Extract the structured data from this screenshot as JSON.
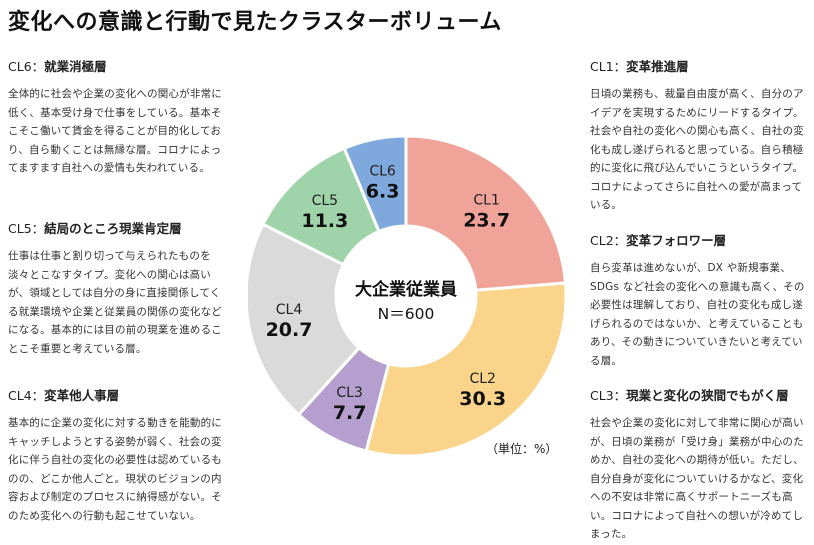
{
  "title": "変化への意識と行動で見たクラスターボリューム",
  "unit": "（単位：%）",
  "blocks": {
    "cl6": {
      "code": "CL6：",
      "name": "就業消極層",
      "body": "全体的に社会や企業の変化への関心が非常に低く、基本受け身で仕事をしている。基本そこそこ働いて賃金を得ることが目的化しており、自ら動くことは無縁な層。コロナによってますます自社への愛情も失われている。"
    },
    "cl5": {
      "code": "CL5：",
      "name": "結局のところ現業肯定層",
      "body": "仕事は仕事と割り切って与えられたものを淡々とこなすタイプ。変化への関心は高いが、領域としては自分の身に直接関係してくる就業環境や企業と従業員の関係の変化などになる。基本的には目の前の現業を進めることこそ重要と考えている層。"
    },
    "cl4": {
      "code": "CL4：",
      "name": "変革他人事層",
      "body": "基本的に企業の変化に対する動きを能動的にキャッチしようとする姿勢が弱く、社会の変化に伴う自社の変化の必要性は認めているものの、どこか他人ごと。現状のビジョンの内容および制定のプロセスに納得感がない。そのため変化への行動も起こせていない。"
    },
    "cl1": {
      "code": "CL1：",
      "name": "変革推進層",
      "body": "日頃の業務も、裁量自由度が高く、自分のアイデアを実現するためにリードするタイプ。社会や自社の変化への関心も高く、自社の変化も成し遂げられると思っている。自ら積極的に変化に飛び込んでいこうというタイプ。コロナによってさらに自社への愛が高まっている。"
    },
    "cl2": {
      "code": "CL2：",
      "name": "変革フォロワー層",
      "body": "自ら変革は進めないが、DX や新規事業、SDGs など社会の変化への意識も高く、その必要性は理解しており、自社の変化も成し遂げられるのではないか、と考えていることもあり、その動きについていきたいと考えている層。"
    },
    "cl3": {
      "code": "CL3：",
      "name": "現業と変化の狭間でもがく層",
      "body": "社会や企業の変化に対して非常に関心が高いが、日頃の業務が「受け身」業務が中心のためか、自社の変化への期待が低い。ただし、自分自身が変化についていけるかなど、変化への不安は非常に高くサポートニーズも高い。コロナによって自社への想いが冷めてしまった。"
    }
  },
  "chart_data": {
    "type": "pie",
    "center_label": "大企業従業員",
    "center_sub": "N＝600",
    "slices": [
      {
        "label": "CL1",
        "value": 23.7,
        "color": "#f0a399"
      },
      {
        "label": "CL2",
        "value": 30.3,
        "color": "#fad48a"
      },
      {
        "label": "CL3",
        "value": 7.7,
        "color": "#b49fcf"
      },
      {
        "label": "CL4",
        "value": 20.7,
        "color": "#dadada"
      },
      {
        "label": "CL5",
        "value": 11.3,
        "color": "#9fd3aa"
      },
      {
        "label": "CL6",
        "value": 6.3,
        "color": "#7fa8dc"
      }
    ]
  }
}
